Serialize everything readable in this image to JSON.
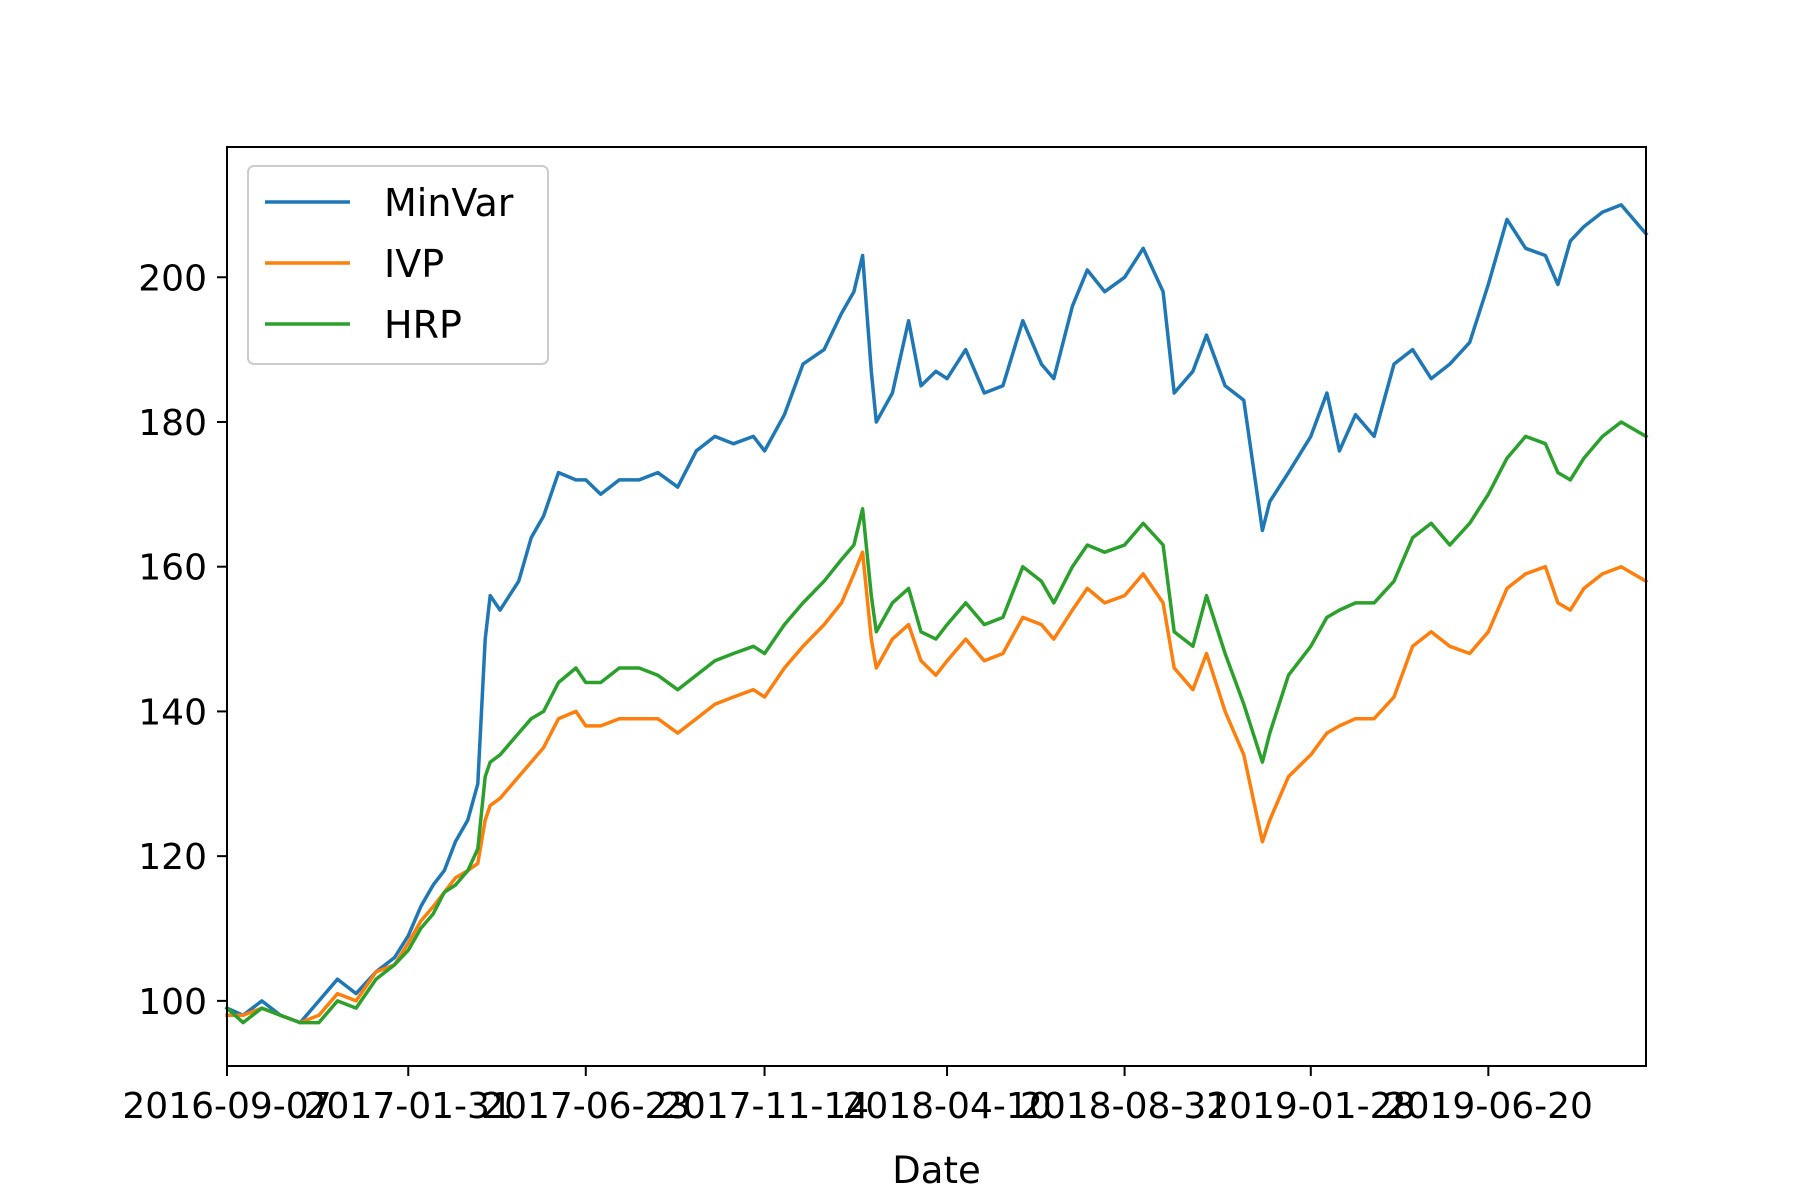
{
  "chart_data": {
    "type": "line",
    "title": "",
    "xlabel": "Date",
    "ylabel": "",
    "x_ticks": [
      "2016-09-07",
      "2017-01-31",
      "2017-06-23",
      "2017-11-14",
      "2018-04-10",
      "2018-08-31",
      "2019-01-28",
      "2019-06-20"
    ],
    "y_ticks": [
      100,
      120,
      140,
      160,
      180,
      200
    ],
    "xlim": [
      "2016-09-07",
      "2019-10-25"
    ],
    "ylim": [
      91,
      218
    ],
    "grid": false,
    "legend_position": "upper-left",
    "series": [
      {
        "name": "MinVar",
        "color": "#1f77b4",
        "points": [
          [
            "2016-09-07",
            99
          ],
          [
            "2016-09-20",
            98
          ],
          [
            "2016-10-05",
            100
          ],
          [
            "2016-10-20",
            98
          ],
          [
            "2016-11-05",
            97
          ],
          [
            "2016-11-20",
            100
          ],
          [
            "2016-12-05",
            103
          ],
          [
            "2016-12-20",
            101
          ],
          [
            "2017-01-05",
            104
          ],
          [
            "2017-01-20",
            106
          ],
          [
            "2017-01-31",
            109
          ],
          [
            "2017-02-10",
            113
          ],
          [
            "2017-02-20",
            116
          ],
          [
            "2017-03-01",
            118
          ],
          [
            "2017-03-10",
            122
          ],
          [
            "2017-03-20",
            125
          ],
          [
            "2017-03-28",
            130
          ],
          [
            "2017-04-03",
            150
          ],
          [
            "2017-04-07",
            156
          ],
          [
            "2017-04-15",
            154
          ],
          [
            "2017-04-30",
            158
          ],
          [
            "2017-05-10",
            164
          ],
          [
            "2017-05-20",
            167
          ],
          [
            "2017-06-01",
            173
          ],
          [
            "2017-06-15",
            172
          ],
          [
            "2017-06-23",
            172
          ],
          [
            "2017-07-05",
            170
          ],
          [
            "2017-07-20",
            172
          ],
          [
            "2017-08-05",
            172
          ],
          [
            "2017-08-20",
            173
          ],
          [
            "2017-09-05",
            171
          ],
          [
            "2017-09-20",
            176
          ],
          [
            "2017-10-05",
            178
          ],
          [
            "2017-10-20",
            177
          ],
          [
            "2017-11-05",
            178
          ],
          [
            "2017-11-14",
            176
          ],
          [
            "2017-11-30",
            181
          ],
          [
            "2017-12-15",
            188
          ],
          [
            "2018-01-01",
            190
          ],
          [
            "2018-01-15",
            195
          ],
          [
            "2018-01-25",
            198
          ],
          [
            "2018-02-01",
            203
          ],
          [
            "2018-02-08",
            187
          ],
          [
            "2018-02-12",
            180
          ],
          [
            "2018-02-25",
            184
          ],
          [
            "2018-03-10",
            194
          ],
          [
            "2018-03-20",
            185
          ],
          [
            "2018-04-01",
            187
          ],
          [
            "2018-04-10",
            186
          ],
          [
            "2018-04-25",
            190
          ],
          [
            "2018-05-10",
            184
          ],
          [
            "2018-05-25",
            185
          ],
          [
            "2018-06-10",
            194
          ],
          [
            "2018-06-25",
            188
          ],
          [
            "2018-07-05",
            186
          ],
          [
            "2018-07-20",
            196
          ],
          [
            "2018-08-01",
            201
          ],
          [
            "2018-08-15",
            198
          ],
          [
            "2018-08-31",
            200
          ],
          [
            "2018-09-15",
            204
          ],
          [
            "2018-10-01",
            198
          ],
          [
            "2018-10-10",
            184
          ],
          [
            "2018-10-25",
            187
          ],
          [
            "2018-11-05",
            192
          ],
          [
            "2018-11-20",
            185
          ],
          [
            "2018-12-05",
            183
          ],
          [
            "2018-12-20",
            165
          ],
          [
            "2018-12-26",
            169
          ],
          [
            "2019-01-10",
            173
          ],
          [
            "2019-01-28",
            178
          ],
          [
            "2019-02-10",
            184
          ],
          [
            "2019-02-20",
            176
          ],
          [
            "2019-03-05",
            181
          ],
          [
            "2019-03-20",
            178
          ],
          [
            "2019-04-05",
            188
          ],
          [
            "2019-04-20",
            190
          ],
          [
            "2019-05-05",
            186
          ],
          [
            "2019-05-20",
            188
          ],
          [
            "2019-06-05",
            191
          ],
          [
            "2019-06-20",
            199
          ],
          [
            "2019-07-05",
            208
          ],
          [
            "2019-07-20",
            204
          ],
          [
            "2019-08-05",
            203
          ],
          [
            "2019-08-15",
            199
          ],
          [
            "2019-08-25",
            205
          ],
          [
            "2019-09-05",
            207
          ],
          [
            "2019-09-20",
            209
          ],
          [
            "2019-10-05",
            210
          ],
          [
            "2019-10-25",
            206
          ]
        ]
      },
      {
        "name": "IVP",
        "color": "#ff7f0e",
        "points": [
          [
            "2016-09-07",
            98
          ],
          [
            "2016-09-20",
            98
          ],
          [
            "2016-10-05",
            99
          ],
          [
            "2016-10-20",
            98
          ],
          [
            "2016-11-05",
            97
          ],
          [
            "2016-11-20",
            98
          ],
          [
            "2016-12-05",
            101
          ],
          [
            "2016-12-20",
            100
          ],
          [
            "2017-01-05",
            104
          ],
          [
            "2017-01-20",
            105
          ],
          [
            "2017-01-31",
            108
          ],
          [
            "2017-02-10",
            111
          ],
          [
            "2017-02-20",
            113
          ],
          [
            "2017-03-01",
            115
          ],
          [
            "2017-03-10",
            117
          ],
          [
            "2017-03-20",
            118
          ],
          [
            "2017-03-28",
            119
          ],
          [
            "2017-04-03",
            125
          ],
          [
            "2017-04-07",
            127
          ],
          [
            "2017-04-15",
            128
          ],
          [
            "2017-04-30",
            131
          ],
          [
            "2017-05-10",
            133
          ],
          [
            "2017-05-20",
            135
          ],
          [
            "2017-06-01",
            139
          ],
          [
            "2017-06-15",
            140
          ],
          [
            "2017-06-23",
            138
          ],
          [
            "2017-07-05",
            138
          ],
          [
            "2017-07-20",
            139
          ],
          [
            "2017-08-05",
            139
          ],
          [
            "2017-08-20",
            139
          ],
          [
            "2017-09-05",
            137
          ],
          [
            "2017-09-20",
            139
          ],
          [
            "2017-10-05",
            141
          ],
          [
            "2017-10-20",
            142
          ],
          [
            "2017-11-05",
            143
          ],
          [
            "2017-11-14",
            142
          ],
          [
            "2017-11-30",
            146
          ],
          [
            "2017-12-15",
            149
          ],
          [
            "2018-01-01",
            152
          ],
          [
            "2018-01-15",
            155
          ],
          [
            "2018-01-25",
            159
          ],
          [
            "2018-02-01",
            162
          ],
          [
            "2018-02-08",
            150
          ],
          [
            "2018-02-12",
            146
          ],
          [
            "2018-02-25",
            150
          ],
          [
            "2018-03-10",
            152
          ],
          [
            "2018-03-20",
            147
          ],
          [
            "2018-04-01",
            145
          ],
          [
            "2018-04-10",
            147
          ],
          [
            "2018-04-25",
            150
          ],
          [
            "2018-05-10",
            147
          ],
          [
            "2018-05-25",
            148
          ],
          [
            "2018-06-10",
            153
          ],
          [
            "2018-06-25",
            152
          ],
          [
            "2018-07-05",
            150
          ],
          [
            "2018-07-20",
            154
          ],
          [
            "2018-08-01",
            157
          ],
          [
            "2018-08-15",
            155
          ],
          [
            "2018-08-31",
            156
          ],
          [
            "2018-09-15",
            159
          ],
          [
            "2018-10-01",
            155
          ],
          [
            "2018-10-10",
            146
          ],
          [
            "2018-10-25",
            143
          ],
          [
            "2018-11-05",
            148
          ],
          [
            "2018-11-20",
            140
          ],
          [
            "2018-12-05",
            134
          ],
          [
            "2018-12-20",
            122
          ],
          [
            "2018-12-26",
            125
          ],
          [
            "2019-01-10",
            131
          ],
          [
            "2019-01-28",
            134
          ],
          [
            "2019-02-10",
            137
          ],
          [
            "2019-02-20",
            138
          ],
          [
            "2019-03-05",
            139
          ],
          [
            "2019-03-20",
            139
          ],
          [
            "2019-04-05",
            142
          ],
          [
            "2019-04-20",
            149
          ],
          [
            "2019-05-05",
            151
          ],
          [
            "2019-05-20",
            149
          ],
          [
            "2019-06-05",
            148
          ],
          [
            "2019-06-20",
            151
          ],
          [
            "2019-07-05",
            157
          ],
          [
            "2019-07-20",
            159
          ],
          [
            "2019-08-05",
            160
          ],
          [
            "2019-08-15",
            155
          ],
          [
            "2019-08-25",
            154
          ],
          [
            "2019-09-05",
            157
          ],
          [
            "2019-09-20",
            159
          ],
          [
            "2019-10-05",
            160
          ],
          [
            "2019-10-25",
            158
          ]
        ]
      },
      {
        "name": "HRP",
        "color": "#2ca02c",
        "points": [
          [
            "2016-09-07",
            99
          ],
          [
            "2016-09-20",
            97
          ],
          [
            "2016-10-05",
            99
          ],
          [
            "2016-10-20",
            98
          ],
          [
            "2016-11-05",
            97
          ],
          [
            "2016-11-20",
            97
          ],
          [
            "2016-12-05",
            100
          ],
          [
            "2016-12-20",
            99
          ],
          [
            "2017-01-05",
            103
          ],
          [
            "2017-01-20",
            105
          ],
          [
            "2017-01-31",
            107
          ],
          [
            "2017-02-10",
            110
          ],
          [
            "2017-02-20",
            112
          ],
          [
            "2017-03-01",
            115
          ],
          [
            "2017-03-10",
            116
          ],
          [
            "2017-03-20",
            118
          ],
          [
            "2017-03-28",
            121
          ],
          [
            "2017-04-03",
            131
          ],
          [
            "2017-04-07",
            133
          ],
          [
            "2017-04-15",
            134
          ],
          [
            "2017-04-30",
            137
          ],
          [
            "2017-05-10",
            139
          ],
          [
            "2017-05-20",
            140
          ],
          [
            "2017-06-01",
            144
          ],
          [
            "2017-06-15",
            146
          ],
          [
            "2017-06-23",
            144
          ],
          [
            "2017-07-05",
            144
          ],
          [
            "2017-07-20",
            146
          ],
          [
            "2017-08-05",
            146
          ],
          [
            "2017-08-20",
            145
          ],
          [
            "2017-09-05",
            143
          ],
          [
            "2017-09-20",
            145
          ],
          [
            "2017-10-05",
            147
          ],
          [
            "2017-10-20",
            148
          ],
          [
            "2017-11-05",
            149
          ],
          [
            "2017-11-14",
            148
          ],
          [
            "2017-11-30",
            152
          ],
          [
            "2017-12-15",
            155
          ],
          [
            "2018-01-01",
            158
          ],
          [
            "2018-01-15",
            161
          ],
          [
            "2018-01-25",
            163
          ],
          [
            "2018-02-01",
            168
          ],
          [
            "2018-02-08",
            156
          ],
          [
            "2018-02-12",
            151
          ],
          [
            "2018-02-25",
            155
          ],
          [
            "2018-03-10",
            157
          ],
          [
            "2018-03-20",
            151
          ],
          [
            "2018-04-01",
            150
          ],
          [
            "2018-04-10",
            152
          ],
          [
            "2018-04-25",
            155
          ],
          [
            "2018-05-10",
            152
          ],
          [
            "2018-05-25",
            153
          ],
          [
            "2018-06-10",
            160
          ],
          [
            "2018-06-25",
            158
          ],
          [
            "2018-07-05",
            155
          ],
          [
            "2018-07-20",
            160
          ],
          [
            "2018-08-01",
            163
          ],
          [
            "2018-08-15",
            162
          ],
          [
            "2018-08-31",
            163
          ],
          [
            "2018-09-15",
            166
          ],
          [
            "2018-10-01",
            163
          ],
          [
            "2018-10-10",
            151
          ],
          [
            "2018-10-25",
            149
          ],
          [
            "2018-11-05",
            156
          ],
          [
            "2018-11-20",
            148
          ],
          [
            "2018-12-05",
            141
          ],
          [
            "2018-12-20",
            133
          ],
          [
            "2018-12-26",
            137
          ],
          [
            "2019-01-10",
            145
          ],
          [
            "2019-01-28",
            149
          ],
          [
            "2019-02-10",
            153
          ],
          [
            "2019-02-20",
            154
          ],
          [
            "2019-03-05",
            155
          ],
          [
            "2019-03-20",
            155
          ],
          [
            "2019-04-05",
            158
          ],
          [
            "2019-04-20",
            164
          ],
          [
            "2019-05-05",
            166
          ],
          [
            "2019-05-20",
            163
          ],
          [
            "2019-06-05",
            166
          ],
          [
            "2019-06-20",
            170
          ],
          [
            "2019-07-05",
            175
          ],
          [
            "2019-07-20",
            178
          ],
          [
            "2019-08-05",
            177
          ],
          [
            "2019-08-15",
            173
          ],
          [
            "2019-08-25",
            172
          ],
          [
            "2019-09-05",
            175
          ],
          [
            "2019-09-20",
            178
          ],
          [
            "2019-10-05",
            180
          ],
          [
            "2019-10-25",
            178
          ]
        ]
      }
    ]
  }
}
